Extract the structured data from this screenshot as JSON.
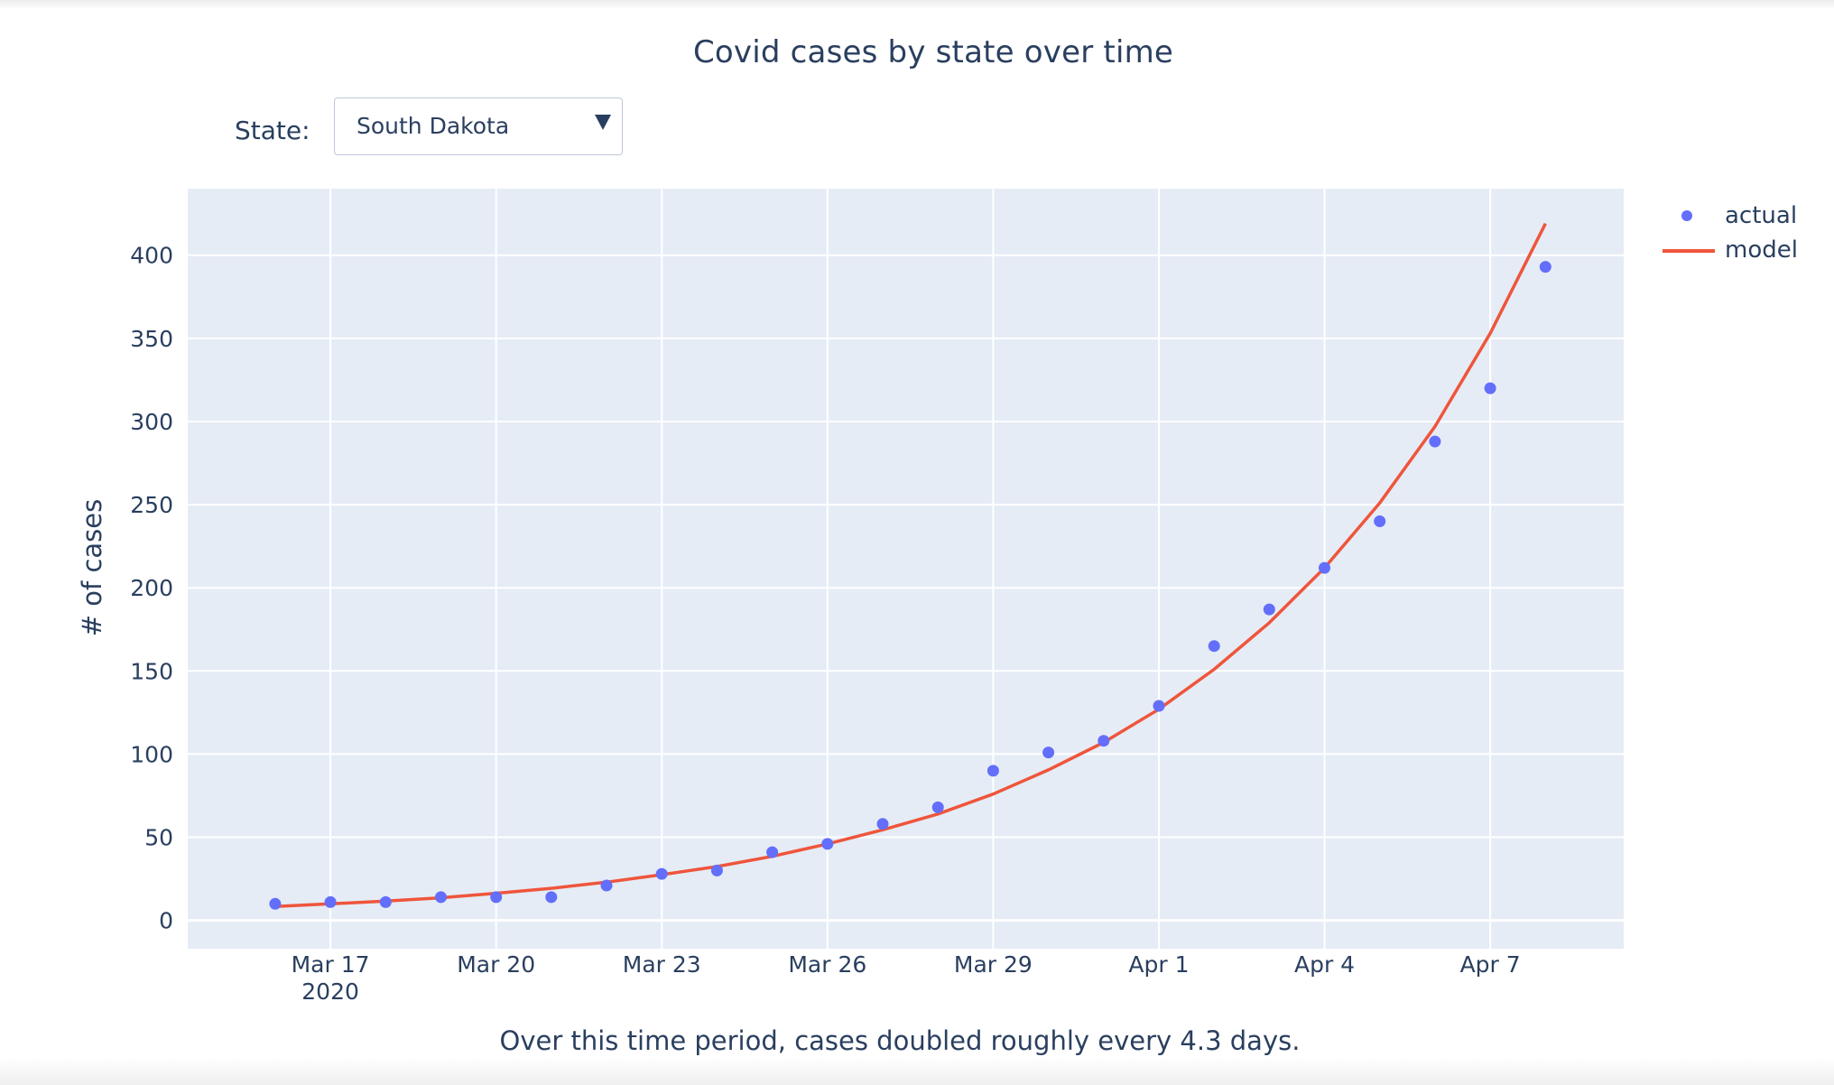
{
  "header": {
    "title": "Covid cases by state over time"
  },
  "controls": {
    "state_label": "State:",
    "state_selected": "South Dakota"
  },
  "caption": "Over this time period, cases doubled roughly every 4.3 days.",
  "colors": {
    "actual": "#636efa",
    "model": "#ef553b",
    "plot_bg": "#e5ecf6",
    "text": "#2a3f5f"
  },
  "legend": {
    "actual_label": "actual",
    "model_label": "model"
  },
  "chart_data": {
    "type": "scatter",
    "title": "Covid cases by state over time",
    "xlabel": "",
    "ylabel": "# of cases",
    "x_range": [
      "2020-03-14T10:00",
      "2020-04-09T10:00"
    ],
    "ylim": [
      -17,
      440
    ],
    "y_ticks": [
      0,
      50,
      100,
      150,
      200,
      250,
      300,
      350,
      400
    ],
    "x_ticks": [
      {
        "date": "2020-03-17",
        "label": "Mar 17",
        "sublabel": "2020"
      },
      {
        "date": "2020-03-20",
        "label": "Mar 20",
        "sublabel": ""
      },
      {
        "date": "2020-03-23",
        "label": "Mar 23",
        "sublabel": ""
      },
      {
        "date": "2020-03-26",
        "label": "Mar 26",
        "sublabel": ""
      },
      {
        "date": "2020-03-29",
        "label": "Mar 29",
        "sublabel": ""
      },
      {
        "date": "2020-04-01",
        "label": "Apr 1",
        "sublabel": ""
      },
      {
        "date": "2020-04-04",
        "label": "Apr 4",
        "sublabel": ""
      },
      {
        "date": "2020-04-07",
        "label": "Apr 7",
        "sublabel": ""
      }
    ],
    "grid": true,
    "legend_position": "top-right",
    "x": [
      "2020-03-16",
      "2020-03-17",
      "2020-03-18",
      "2020-03-19",
      "2020-03-20",
      "2020-03-21",
      "2020-03-22",
      "2020-03-23",
      "2020-03-24",
      "2020-03-25",
      "2020-03-26",
      "2020-03-27",
      "2020-03-28",
      "2020-03-29",
      "2020-03-30",
      "2020-03-31",
      "2020-04-01",
      "2020-04-02",
      "2020-04-03",
      "2020-04-04",
      "2020-04-05",
      "2020-04-06",
      "2020-04-07",
      "2020-04-08"
    ],
    "series": [
      {
        "name": "actual",
        "mode": "markers",
        "values": [
          10,
          11,
          11,
          14,
          14,
          14,
          21,
          28,
          30,
          41,
          46,
          58,
          68,
          90,
          101,
          108,
          129,
          165,
          187,
          212,
          240,
          288,
          320,
          393
        ]
      },
      {
        "name": "model",
        "mode": "lines",
        "values": [
          8.4,
          10.0,
          11.6,
          13.6,
          16.3,
          19.3,
          23.0,
          27.5,
          32.4,
          38.5,
          46.0,
          54.5,
          64.0,
          76.0,
          90.5,
          107.0,
          127.0,
          151.0,
          179.0,
          212.0,
          251.0,
          297.0,
          353.0,
          419.0
        ]
      }
    ]
  }
}
